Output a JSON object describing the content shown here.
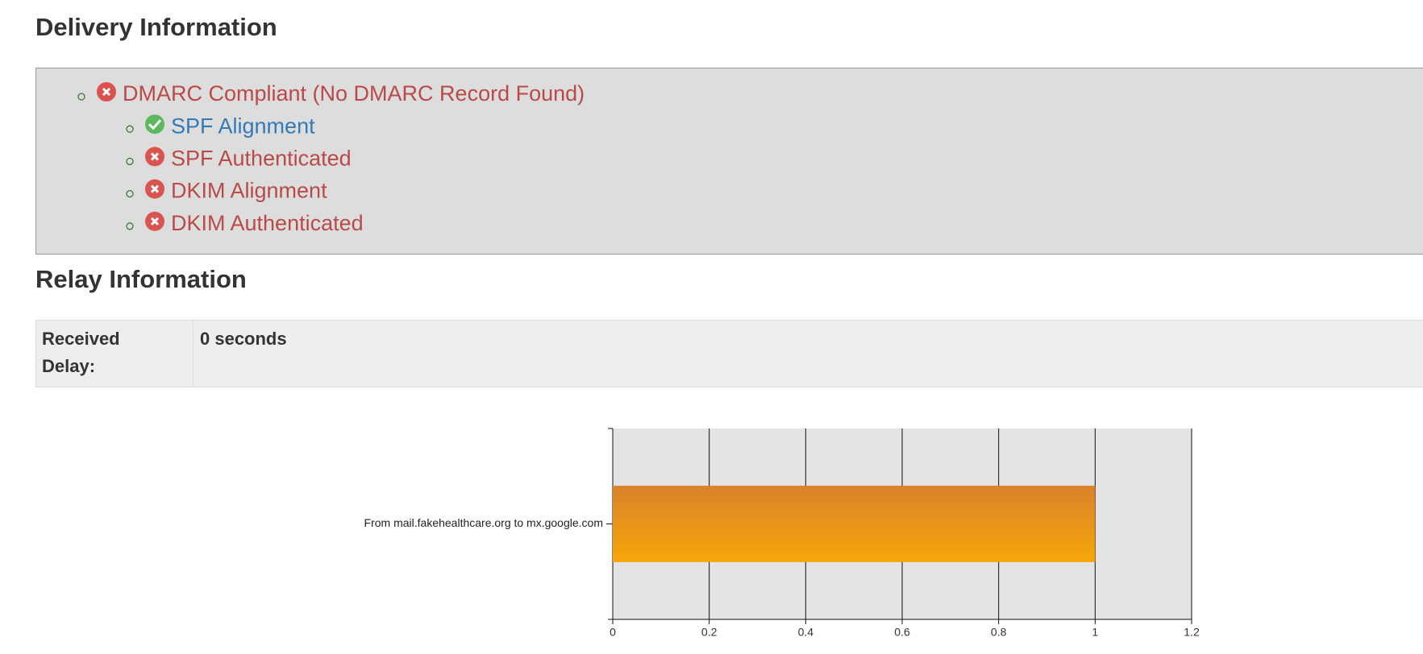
{
  "delivery": {
    "title": "Delivery Information",
    "items": [
      {
        "label": "DMARC Compliant (No DMARC Record Found)",
        "status": "fail",
        "level": 0
      },
      {
        "label": "SPF Alignment",
        "status": "pass",
        "level": 1
      },
      {
        "label": "SPF Authenticated",
        "status": "fail",
        "level": 1
      },
      {
        "label": "DKIM Alignment",
        "status": "fail",
        "level": 1
      },
      {
        "label": "DKIM Authenticated",
        "status": "fail",
        "level": 1
      }
    ]
  },
  "relay": {
    "title": "Relay Information",
    "table": {
      "label": "Received Delay:",
      "value": "0 seconds"
    }
  },
  "chart_data": {
    "type": "bar",
    "orientation": "horizontal",
    "categories": [
      "From mail.fakehealthcare.org to mx.google.com"
    ],
    "values": [
      1
    ],
    "color": "#f6a30b",
    "xlim": [
      0,
      1.2
    ],
    "xticks": [
      0,
      0.2,
      0.4,
      0.6,
      0.8,
      1,
      1.2
    ],
    "grid": true
  }
}
